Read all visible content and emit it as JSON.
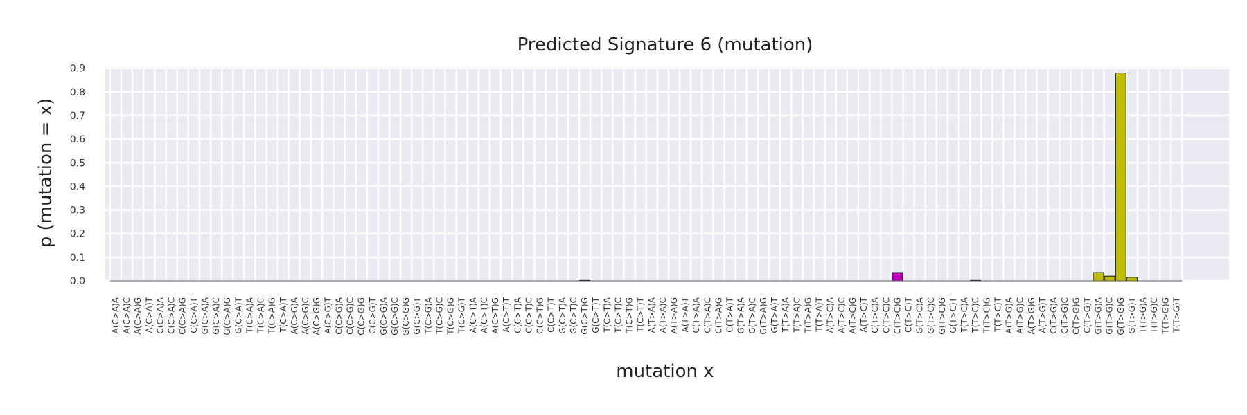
{
  "chart_data": {
    "type": "bar",
    "title": "Predicted Signature 6 (mutation)",
    "xlabel": "mutation x",
    "ylabel": "p (mutation = x)",
    "ylim": [
      0,
      0.9
    ],
    "yticks": [
      "0.0",
      "0.1",
      "0.2",
      "0.3",
      "0.4",
      "0.5",
      "0.6",
      "0.7",
      "0.8",
      "0.9"
    ],
    "grid": true,
    "categories": [
      "A(C>A)A",
      "A(C>A)C",
      "A(C>A)G",
      "A(C>A)T",
      "C(C>A)A",
      "C(C>A)C",
      "C(C>A)G",
      "C(C>A)T",
      "G(C>A)A",
      "G(C>A)C",
      "G(C>A)G",
      "G(C>A)T",
      "T(C>A)A",
      "T(C>A)C",
      "T(C>A)G",
      "T(C>A)T",
      "A(C>G)A",
      "A(C>G)C",
      "A(C>G)G",
      "A(C>G)T",
      "C(C>G)A",
      "C(C>G)C",
      "C(C>G)G",
      "C(C>G)T",
      "G(C>G)A",
      "G(C>G)C",
      "G(C>G)G",
      "G(C>G)T",
      "T(C>G)A",
      "T(C>G)C",
      "T(C>G)G",
      "T(C>G)T",
      "A(C>T)A",
      "A(C>T)C",
      "A(C>T)G",
      "A(C>T)T",
      "C(C>T)A",
      "C(C>T)C",
      "C(C>T)G",
      "C(C>T)T",
      "G(C>T)A",
      "G(C>T)C",
      "G(C>T)G",
      "G(C>T)T",
      "T(C>T)A",
      "T(C>T)C",
      "T(C>T)G",
      "T(C>T)T",
      "A(T>A)A",
      "A(T>A)C",
      "A(T>A)G",
      "A(T>A)T",
      "C(T>A)A",
      "C(T>A)C",
      "C(T>A)G",
      "C(T>A)T",
      "G(T>A)A",
      "G(T>A)C",
      "G(T>A)G",
      "G(T>A)T",
      "T(T>A)A",
      "T(T>A)C",
      "T(T>A)G",
      "T(T>A)T",
      "A(T>C)A",
      "A(T>C)C",
      "A(T>C)G",
      "A(T>C)T",
      "C(T>C)A",
      "C(T>C)C",
      "C(T>C)G",
      "C(T>C)T",
      "G(T>C)A",
      "G(T>C)C",
      "G(T>C)G",
      "G(T>C)T",
      "T(T>C)A",
      "T(T>C)C",
      "T(T>C)G",
      "T(T>C)T",
      "A(T>G)A",
      "A(T>G)C",
      "A(T>G)G",
      "A(T>G)T",
      "C(T>G)A",
      "C(T>G)C",
      "C(T>G)G",
      "C(T>G)T",
      "G(T>G)A",
      "G(T>G)C",
      "G(T>G)G",
      "G(T>G)T",
      "T(T>G)A",
      "T(T>G)C",
      "T(T>G)G",
      "T(T>G)T"
    ],
    "values": [
      0,
      0,
      0,
      0,
      0,
      0,
      0,
      0,
      0,
      0,
      0,
      0,
      0,
      0,
      0,
      0,
      0,
      0,
      0,
      0,
      0,
      0,
      0,
      0,
      0,
      0,
      0,
      0,
      0,
      0,
      0,
      0,
      0,
      0,
      0,
      0,
      0,
      0,
      0,
      0,
      0,
      0,
      0.002,
      0,
      0,
      0,
      0,
      0,
      0,
      0,
      0,
      0,
      0,
      0,
      0,
      0,
      0,
      0,
      0,
      0,
      0,
      0,
      0,
      0,
      0,
      0,
      0,
      0,
      0,
      0,
      0.035,
      0,
      0,
      0,
      0,
      0,
      0,
      0.002,
      0,
      0,
      0,
      0,
      0,
      0,
      0,
      0,
      0,
      0,
      0.035,
      0.02,
      0.88,
      0.015,
      0,
      0,
      0,
      0
    ],
    "colors": {
      "C>A": "#00bfff",
      "C>G": "#222222",
      "C>T": "#ff3030",
      "T>A": "#bcbcbc",
      "T>C": "#bf00bf",
      "T>G": "#bfbf00"
    },
    "background": "#eaeaf2",
    "gridColor": "#ffffff"
  }
}
